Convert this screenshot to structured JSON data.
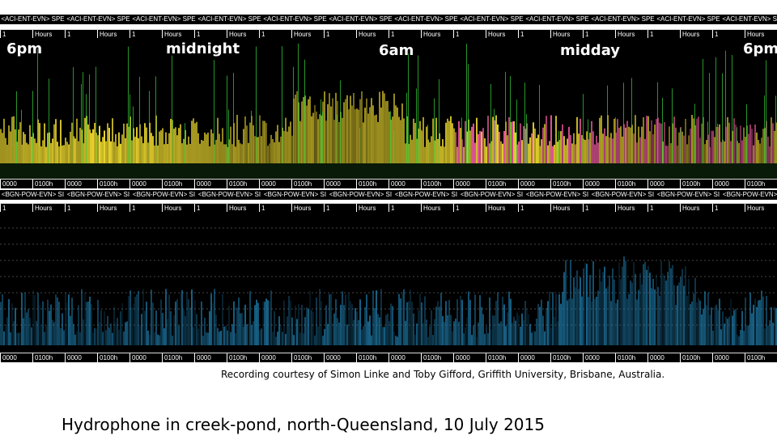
{
  "top_panel": {
    "header_label": "<ACI-ENT-EVN> SPE",
    "axis_tick_labels": [
      "Hours",
      "1"
    ],
    "bottom_tick_labels": [
      "0000",
      "0100h"
    ]
  },
  "bottom_panel": {
    "header_label": "<BGN-POW-EVN> SI",
    "axis_tick_labels": [
      "Hours",
      "1"
    ],
    "bottom_tick_labels": [
      "0000",
      "0100h"
    ]
  },
  "time_markers": [
    "6pm",
    "midnight",
    "6am",
    "midday",
    "6pm"
  ],
  "credit": "Recording courtesy of Simon Linke and Toby Gifford, Griffith University, Brisbane, Australia.",
  "caption": "Hydrophone in creek-pond, north-Queensland, 10 July 2015",
  "colors": {
    "top_spectrogram_primary": "#f5e030",
    "top_spectrogram_secondary": "#ff5fa8",
    "top_spectrogram_tertiary": "#39d63a",
    "bottom_spectrogram_primary": "#1f7fb0",
    "axis_line": "#3a3aff"
  }
}
